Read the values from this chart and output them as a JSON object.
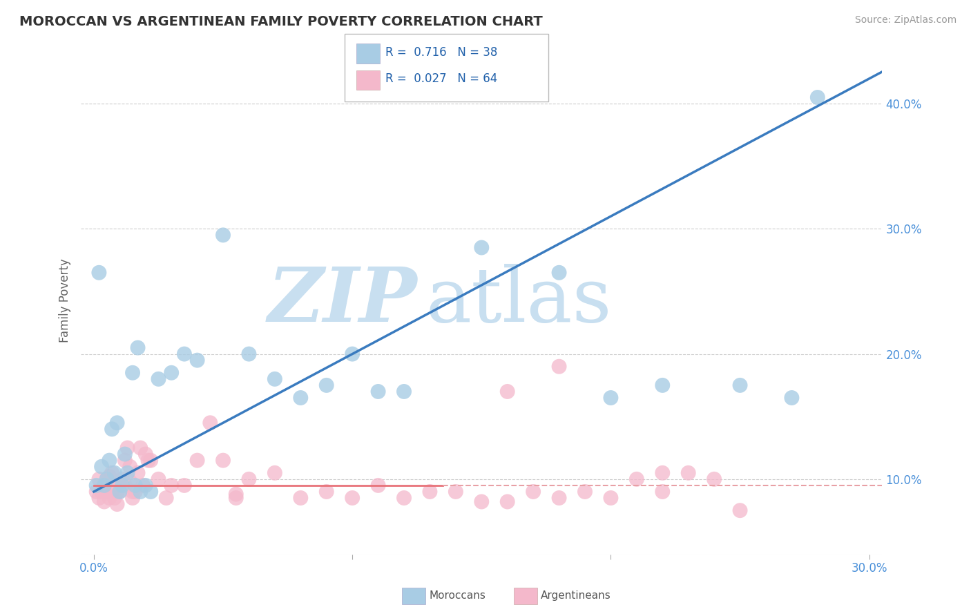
{
  "title": "MOROCCAN VS ARGENTINEAN FAMILY POVERTY CORRELATION CHART",
  "source": "Source: ZipAtlas.com",
  "ylabel": "Family Poverty",
  "xlim": [
    -0.005,
    0.305
  ],
  "ylim": [
    0.04,
    0.445
  ],
  "x_ticks": [
    0.0,
    0.1,
    0.2,
    0.3
  ],
  "x_tick_labels": [
    "0.0%",
    "",
    "",
    "30.0%"
  ],
  "y_ticks": [
    0.1,
    0.2,
    0.3,
    0.4
  ],
  "y_tick_labels": [
    "10.0%",
    "20.0%",
    "30.0%",
    "40.0%"
  ],
  "moroccan_color": "#a8cce4",
  "argentinean_color": "#f4b8cb",
  "R_moroccan": 0.716,
  "N_moroccan": 38,
  "R_argentinean": 0.027,
  "N_argentinean": 64,
  "moroccan_line_color": "#3a7bbf",
  "argentinean_line_solid_color": "#e8737a",
  "argentinean_line_dash_color": "#e8a0a5",
  "watermark_zip": "ZIP",
  "watermark_atlas": "atlas",
  "watermark_color": "#c8dff0",
  "legend_label_moroccan": "Moroccans",
  "legend_label_argentinean": "Argentineans",
  "moroccan_x": [
    0.001,
    0.002,
    0.003,
    0.004,
    0.005,
    0.006,
    0.007,
    0.008,
    0.009,
    0.01,
    0.011,
    0.012,
    0.013,
    0.015,
    0.016,
    0.017,
    0.018,
    0.02,
    0.022,
    0.025,
    0.03,
    0.035,
    0.04,
    0.05,
    0.06,
    0.07,
    0.08,
    0.09,
    0.1,
    0.11,
    0.12,
    0.15,
    0.18,
    0.2,
    0.22,
    0.25,
    0.27,
    0.28
  ],
  "moroccan_y": [
    0.095,
    0.265,
    0.11,
    0.095,
    0.1,
    0.115,
    0.14,
    0.105,
    0.145,
    0.09,
    0.095,
    0.12,
    0.105,
    0.185,
    0.095,
    0.205,
    0.09,
    0.095,
    0.09,
    0.18,
    0.185,
    0.2,
    0.195,
    0.295,
    0.2,
    0.18,
    0.165,
    0.175,
    0.2,
    0.17,
    0.17,
    0.285,
    0.265,
    0.165,
    0.175,
    0.175,
    0.165,
    0.405
  ],
  "argentinean_x": [
    0.001,
    0.002,
    0.002,
    0.003,
    0.004,
    0.005,
    0.005,
    0.006,
    0.006,
    0.007,
    0.007,
    0.008,
    0.008,
    0.009,
    0.009,
    0.01,
    0.01,
    0.011,
    0.012,
    0.012,
    0.013,
    0.014,
    0.014,
    0.015,
    0.015,
    0.016,
    0.017,
    0.018,
    0.019,
    0.02,
    0.021,
    0.022,
    0.025,
    0.028,
    0.03,
    0.035,
    0.04,
    0.045,
    0.05,
    0.055,
    0.06,
    0.07,
    0.08,
    0.09,
    0.1,
    0.11,
    0.12,
    0.13,
    0.14,
    0.15,
    0.16,
    0.17,
    0.18,
    0.19,
    0.2,
    0.21,
    0.22,
    0.23,
    0.24,
    0.25,
    0.16,
    0.055,
    0.18,
    0.22
  ],
  "argentinean_y": [
    0.09,
    0.1,
    0.085,
    0.09,
    0.082,
    0.09,
    0.1,
    0.102,
    0.085,
    0.09,
    0.105,
    0.085,
    0.095,
    0.09,
    0.08,
    0.09,
    0.095,
    0.1,
    0.095,
    0.115,
    0.125,
    0.098,
    0.11,
    0.085,
    0.09,
    0.09,
    0.105,
    0.125,
    0.095,
    0.12,
    0.115,
    0.115,
    0.1,
    0.085,
    0.095,
    0.095,
    0.115,
    0.145,
    0.115,
    0.085,
    0.1,
    0.105,
    0.085,
    0.09,
    0.085,
    0.095,
    0.085,
    0.09,
    0.09,
    0.082,
    0.082,
    0.09,
    0.085,
    0.09,
    0.085,
    0.1,
    0.105,
    0.105,
    0.1,
    0.075,
    0.17,
    0.088,
    0.19,
    0.09
  ],
  "background_color": "#ffffff",
  "grid_color": "#cccccc"
}
